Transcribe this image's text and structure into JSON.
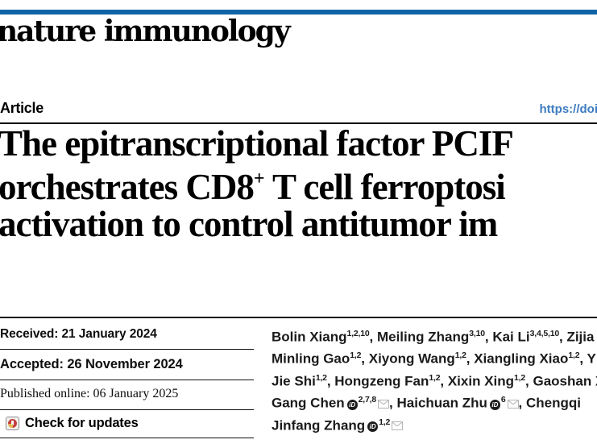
{
  "colors": {
    "masthead_bar": "#1165a7",
    "link_blue": "#3d7cc0"
  },
  "masthead": {
    "logo": "nature immunology"
  },
  "header": {
    "article_label": "Article",
    "doi_link": "https://doi"
  },
  "title": {
    "line1": "The epitranscriptional factor PCIF",
    "line2_pre": "orchestrates CD8",
    "line2_sup": "+",
    "line2_post": " T cell ferroptosi",
    "line3": "activation to control antitumor im"
  },
  "dates": [
    "Received: 21 January 2024",
    "Accepted: 26 November 2024",
    "Published online: 06 January 2025"
  ],
  "check_for_updates": {
    "label": "Check for updates",
    "icon": "crossmark-badge-icon"
  },
  "authors": {
    "lines": [
      [
        {
          "name": "Bolin Xiang",
          "sup": "1,2,10",
          "orcid": false,
          "mail": false,
          "sep": ", "
        },
        {
          "name": "Meiling Zhang",
          "sup": "3,10",
          "orcid": false,
          "mail": false,
          "sep": ", "
        },
        {
          "name": "Kai Li",
          "sup": "3,4,5,10",
          "orcid": false,
          "mail": false,
          "sep": ", "
        },
        {
          "name": "Zijia",
          "sup": "",
          "orcid": false,
          "mail": false,
          "sep": ""
        }
      ],
      [
        {
          "name": "Minling Gao",
          "sup": "1,2",
          "orcid": false,
          "mail": false,
          "sep": ", "
        },
        {
          "name": "Xiyong Wang",
          "sup": "1,2",
          "orcid": false,
          "mail": false,
          "sep": ", "
        },
        {
          "name": "Xiangling Xiao",
          "sup": "1,2",
          "orcid": false,
          "mail": false,
          "sep": ", "
        },
        {
          "name": "Y",
          "sup": "",
          "orcid": false,
          "mail": false,
          "sep": ""
        }
      ],
      [
        {
          "name": "Jie Shi",
          "sup": "1,2",
          "orcid": false,
          "mail": false,
          "sep": ", "
        },
        {
          "name": "Hongzeng Fan",
          "sup": "1,2",
          "orcid": false,
          "mail": false,
          "sep": ", "
        },
        {
          "name": "Xixin Xing",
          "sup": "1,2",
          "orcid": false,
          "mail": false,
          "sep": ", "
        },
        {
          "name": "Gaoshan X",
          "sup": "",
          "orcid": false,
          "mail": false,
          "sep": ""
        }
      ],
      [
        {
          "name": "Gang Chen",
          "sup": "2,7,8",
          "orcid": true,
          "mail": true,
          "sep": ", "
        },
        {
          "name": "Haichuan Zhu",
          "sup": "6",
          "orcid": true,
          "mail": true,
          "sep": ", "
        },
        {
          "name": "Chengqi",
          "sup": "",
          "orcid": false,
          "mail": false,
          "sep": ""
        }
      ],
      [
        {
          "name": "Jinfang Zhang",
          "sup": "1,2",
          "orcid": true,
          "mail": true,
          "sep": ""
        }
      ]
    ],
    "orcid_icon_label": "iD"
  }
}
